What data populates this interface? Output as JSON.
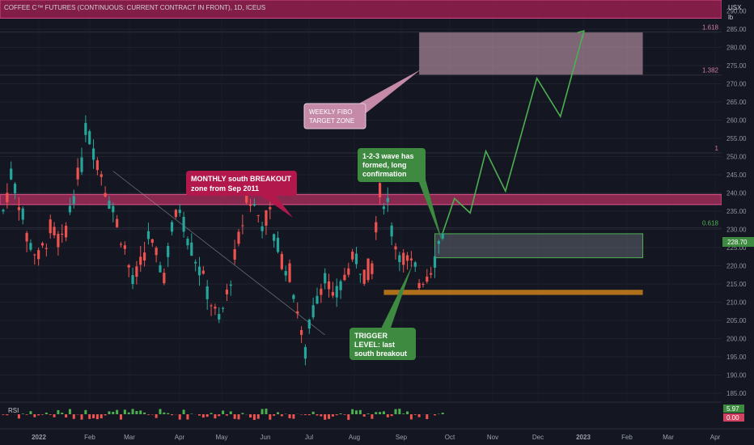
{
  "header": {
    "title": "COFFEE C™ FUTURES (CONTINUOUS: CURRENT CONTRACT IN FRONT), 1D, ICEUS",
    "currency": "USX",
    "unit": "lb"
  },
  "chart_data": {
    "type": "candlestick",
    "ylim": [
      183,
      293
    ],
    "y_ticks": [
      185,
      190,
      195,
      200,
      205,
      210,
      215,
      220,
      225,
      230,
      235,
      240,
      245,
      250,
      255,
      260,
      265,
      270,
      275,
      280,
      285,
      290
    ],
    "y_tick_labels": [
      "185.00",
      "190.00",
      "195.00",
      "200.00",
      "205.00",
      "210.00",
      "215.00",
      "220.00",
      "225.00",
      "230.00",
      "235.00",
      "240.00",
      "245.00",
      "250.00",
      "255.00",
      "260.00",
      "265.00",
      "270.00",
      "275.00",
      "280.00",
      "285.00",
      "290.00"
    ],
    "x_tick_labels": [
      "2022",
      "Feb",
      "Mar",
      "Apr",
      "May",
      "Jun",
      "Jul",
      "Aug",
      "Sep",
      "Oct",
      "Nov",
      "Dec",
      "2023",
      "Feb",
      "Mar",
      "Apr"
    ],
    "last_price": "228.70",
    "price_path": [
      [
        0,
        235
      ],
      [
        2,
        245
      ],
      [
        4,
        238
      ],
      [
        6,
        228
      ],
      [
        9,
        222
      ],
      [
        12,
        230
      ],
      [
        15,
        226
      ],
      [
        18,
        240
      ],
      [
        20,
        248
      ],
      [
        21,
        258
      ],
      [
        23,
        252
      ],
      [
        25,
        246
      ],
      [
        27,
        238
      ],
      [
        29,
        232
      ],
      [
        31,
        225
      ],
      [
        33,
        215
      ],
      [
        35,
        220
      ],
      [
        37,
        228
      ],
      [
        39,
        222
      ],
      [
        41,
        218
      ],
      [
        43,
        230
      ],
      [
        45,
        236
      ],
      [
        47,
        228
      ],
      [
        49,
        222
      ],
      [
        51,
        216
      ],
      [
        53,
        210
      ],
      [
        55,
        204
      ],
      [
        57,
        212
      ],
      [
        59,
        222
      ],
      [
        61,
        232
      ],
      [
        62,
        240
      ],
      [
        64,
        236
      ],
      [
        66,
        232
      ],
      [
        68,
        234
      ],
      [
        69,
        228
      ],
      [
        71,
        222
      ],
      [
        73,
        218
      ],
      [
        75,
        208
      ],
      [
        76,
        200
      ],
      [
        77,
        196
      ],
      [
        78,
        203
      ],
      [
        80,
        212
      ],
      [
        82,
        218
      ],
      [
        84,
        210
      ],
      [
        86,
        214
      ],
      [
        88,
        220
      ],
      [
        90,
        222
      ],
      [
        92,
        218
      ],
      [
        94,
        220
      ],
      [
        95,
        232
      ],
      [
        96,
        240
      ],
      [
        98,
        237
      ],
      [
        99,
        230
      ],
      [
        100,
        226
      ],
      [
        102,
        222
      ],
      [
        104,
        220
      ],
      [
        106,
        216
      ],
      [
        108,
        218
      ],
      [
        110,
        222
      ],
      [
        111,
        226
      ],
      [
        112,
        229
      ]
    ],
    "horizontal_levels": [
      {
        "value": 230.4,
        "label": "0.618"
      },
      {
        "value": 251.0,
        "label": "1"
      },
      {
        "value": 272.4,
        "label": "1.382"
      },
      {
        "value": 284.2,
        "label": "1.618"
      }
    ],
    "fib_label_color": "#d07ba3",
    "projection_path": [
      [
        112,
        229
      ],
      [
        115,
        238.5
      ],
      [
        119,
        234.5
      ],
      [
        123,
        251.5
      ],
      [
        128,
        240.5
      ],
      [
        136,
        271.5
      ],
      [
        142,
        261
      ],
      [
        148,
        284.5
      ]
    ],
    "projection_color": "#4caf50",
    "zones": [
      {
        "name": "top-red-band",
        "y1": 288,
        "y2": 293,
        "color": "#9c1f50"
      },
      {
        "name": "monthly-breakout-zone",
        "y1": 236.8,
        "y2": 239.6,
        "color": "#b0305f"
      },
      {
        "name": "weekly-fibo-target",
        "y1": 272.4,
        "y2": 284.2,
        "x1": 106,
        "x2": 163,
        "color": "#d6a7bd"
      },
      {
        "name": "consolidation-box",
        "y1": 222.2,
        "y2": 228.8,
        "x1": 110,
        "x2": 163,
        "color": "#9aa1ad"
      },
      {
        "name": "trigger-level",
        "y1": 212.0,
        "y2": 213.4,
        "x1": 97,
        "x2": 163,
        "color": "#c07a1c"
      }
    ],
    "rsi": {
      "label": "RSI",
      "values": [
        "5.97",
        "0.00"
      ],
      "value_colors": [
        "#4caf50",
        "#d14160"
      ]
    }
  },
  "annotations": {
    "monthly": {
      "line1": "MONTHLY south BREAKOUT",
      "line2": "zone from Sep 2011",
      "color": "#b2184b"
    },
    "weekly": {
      "line1": "WEEKLY FIBO",
      "line2": "TARGET ZONE",
      "color": "#c48aa8"
    },
    "wave": {
      "line1": "1-2-3 wave has",
      "line2": "formed, long",
      "line3": "confirmation",
      "color": "#3d8a40"
    },
    "trigger": {
      "line1": "TRIGGER",
      "line2": "LEVEL: last",
      "line3": "south breakout",
      "color": "#3d8a40"
    }
  }
}
